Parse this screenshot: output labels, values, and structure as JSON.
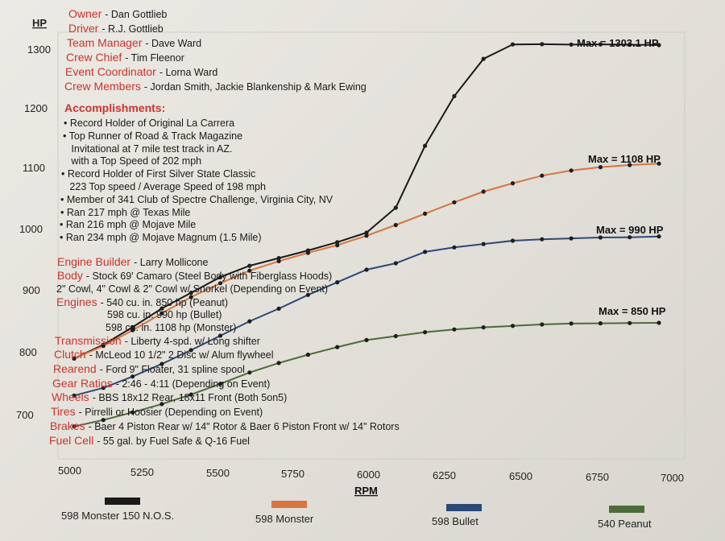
{
  "chart_data": {
    "type": "line",
    "ylabel": "HP",
    "xlabel": "RPM",
    "xlim": [
      5000,
      7000
    ],
    "ylim": [
      650,
      1330
    ],
    "x_ticks": [
      "5000",
      "5250",
      "5500",
      "5750",
      "6000",
      "6250",
      "6500",
      "6750",
      "7000"
    ],
    "y_ticks": [
      "1300",
      "1200",
      "1100",
      "1000",
      "900",
      "800",
      "700"
    ],
    "grid": false,
    "legend_position": "bottom",
    "series": [
      {
        "name": "598 Monster 150 N.O.S.",
        "color": "#1a1a1a",
        "max_label": "Max = 1303.1 HP",
        "x": [
          5000,
          5100,
          5200,
          5300,
          5400,
          5500,
          5600,
          5700,
          5800,
          5900,
          6000,
          6100,
          6200,
          6300,
          6400,
          6500,
          6600,
          6700,
          6800,
          6900,
          7000
        ],
        "y": [
          800,
          822,
          850,
          880,
          905,
          930,
          948,
          960,
          972,
          985,
          1000,
          1040,
          1140,
          1220,
          1280,
          1303,
          1303,
          1302,
          1302,
          1301,
          1300
        ]
      },
      {
        "name": "598 Monster",
        "color": "#d9743f",
        "max_label": "Max = 1108 HP",
        "x": [
          5000,
          5100,
          5200,
          5300,
          5400,
          5500,
          5600,
          5700,
          5800,
          5900,
          6000,
          6100,
          6200,
          6300,
          6400,
          6500,
          6600,
          6700,
          6800,
          6900,
          7000
        ],
        "y": [
          800,
          820,
          845,
          872,
          898,
          920,
          940,
          955,
          968,
          980,
          995,
          1012,
          1030,
          1048,
          1065,
          1078,
          1090,
          1098,
          1103,
          1106,
          1108
        ]
      },
      {
        "name": "598 Bullet",
        "color": "#2c4a78",
        "max_label": "Max = 990 HP",
        "x": [
          5000,
          5100,
          5200,
          5300,
          5400,
          5500,
          5600,
          5700,
          5800,
          5900,
          6000,
          6100,
          6200,
          6300,
          6400,
          6500,
          6600,
          6700,
          6800,
          6900,
          7000
        ],
        "y": [
          740,
          752,
          770,
          790,
          812,
          835,
          858,
          878,
          900,
          920,
          940,
          950,
          968,
          975,
          980,
          985,
          987,
          988,
          989,
          989,
          990
        ]
      },
      {
        "name": "540 Peanut",
        "color": "#4c6b3a",
        "max_label": "Max = 850 HP",
        "x": [
          5000,
          5100,
          5200,
          5300,
          5400,
          5500,
          5600,
          5700,
          5800,
          5900,
          6000,
          6100,
          6200,
          6300,
          6400,
          6500,
          6600,
          6700,
          6800,
          6900,
          7000
        ],
        "y": [
          690,
          700,
          712,
          725,
          740,
          757,
          775,
          790,
          803,
          815,
          826,
          832,
          838,
          842,
          845,
          847,
          849,
          850,
          850,
          850,
          850
        ]
      }
    ]
  },
  "info": {
    "owner": {
      "label": "Owner",
      "value": "- Dan Gottlieb"
    },
    "driver": {
      "label": "Driver",
      "value": "- R.J. Gottlieb"
    },
    "team_manager": {
      "label": "Team Manager",
      "value": "- Dave Ward"
    },
    "crew_chief": {
      "label": "Crew Chief",
      "value": "- Tim Fleenor"
    },
    "event_coordinator": {
      "label": "Event Coordinator",
      "value": "- Lorna Ward"
    },
    "crew_members": {
      "label": "Crew Members",
      "value": "- Jordan Smith, Jackie Blankenship & Mark Ewing"
    },
    "accomplishments_title": "Accomplishments:",
    "accomplishments": [
      "• Record Holder of Original La Carrera",
      "• Top Runner of Road & Track Magazine",
      "   Invitational at 7 mile test track in AZ.",
      "   with a Top Speed of 202 mph",
      "• Record Holder of First Silver State Classic",
      "   223 Top speed / Average Speed of 198 mph",
      "• Member of 341 Club of Spectre Challenge, Virginia City, NV",
      "• Ran 217 mph @ Texas Mile",
      "• Ran 216 mph @ Mojave Mile",
      "• Ran 234 mph @ Mojave Magnum (1.5 Mile)"
    ],
    "engine_builder": {
      "label": "Engine Builder",
      "value": "- Larry Mollicone"
    },
    "body": {
      "label": "Body",
      "value": "- Stock 69' Camaro (Steel Body with Fiberglass Hoods)"
    },
    "body_line2": "2\" Cowl, 4\" Cowl & 2\" Cowl w/ Snorkel (Depending on Event)",
    "engines": {
      "label": "Engines",
      "value": "- 540 cu. in. 850 hp (Peanut)"
    },
    "engines_line2": "598 cu. in. 990 hp (Bullet)",
    "engines_line3": "598 cu. in. 1108 hp (Monster)",
    "transmission": {
      "label": "Transmission",
      "value": "- Liberty 4-spd. w/ Long shifter"
    },
    "clutch": {
      "label": "Clutch",
      "value": "- McLeod 10 1/2\" 2 Disc w/ Alum flywheel"
    },
    "rearend": {
      "label": "Rearend",
      "value": "- Ford 9\" Floater, 31 spline spool"
    },
    "gear_ratios": {
      "label": "Gear Ratios",
      "value": "- 2:46 - 4:11 (Depending on Event)"
    },
    "wheels": {
      "label": "Wheels",
      "value": "- BBS 18x12 Rear, 18x11 Front (Both 5on5)"
    },
    "tires": {
      "label": "Tires",
      "value": "- Pirrelli or Hoosier (Depending on Event)"
    },
    "brakes": {
      "label": "Brakes",
      "value": "- Baer 4 Piston Rear w/ 14\" Rotor & Baer 6 Piston Front w/ 14\" Rotors"
    },
    "fuel_cell": {
      "label": "Fuel Cell",
      "value": "- 55 gal. by Fuel Safe & Q-16 Fuel"
    }
  }
}
